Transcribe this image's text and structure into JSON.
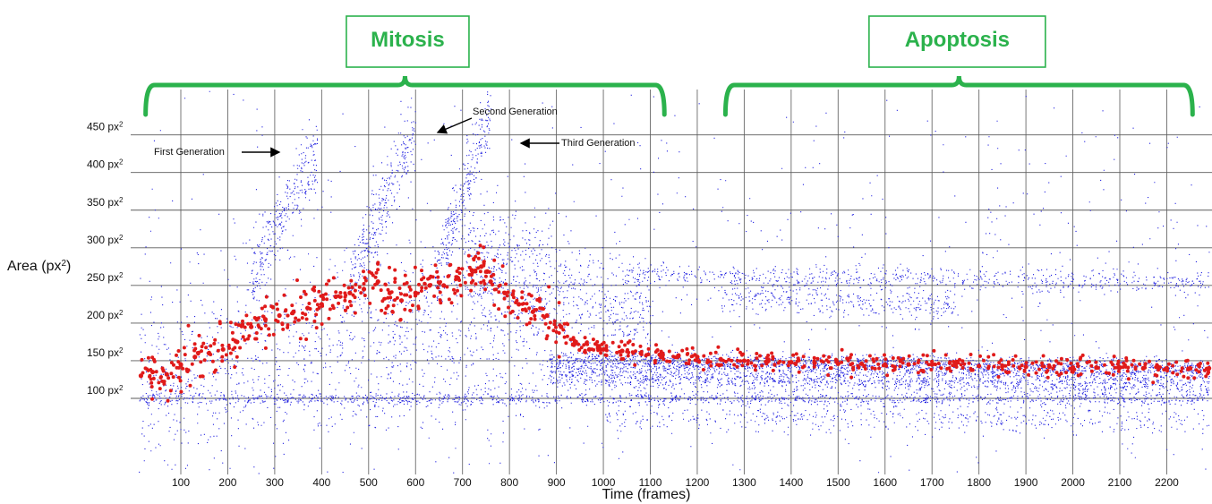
{
  "chart_data": {
    "type": "scatter",
    "xlabel": "Time (frames)",
    "ylabel_main": "Area (px",
    "ylabel_sup": "2",
    "ylabel_close": ")",
    "x_ticks": [
      100,
      200,
      300,
      400,
      500,
      600,
      700,
      800,
      900,
      1000,
      1100,
      1200,
      1300,
      1400,
      1500,
      1600,
      1700,
      1800,
      1900,
      2000,
      2100,
      2200
    ],
    "y_ticks": [
      {
        "value": 100,
        "label": "100 px"
      },
      {
        "value": 150,
        "label": "150 px"
      },
      {
        "value": 200,
        "label": "200 px"
      },
      {
        "value": 250,
        "label": "250 px"
      },
      {
        "value": 300,
        "label": "300 px"
      },
      {
        "value": 350,
        "label": "350 px"
      },
      {
        "value": 400,
        "label": "400 px"
      },
      {
        "value": 450,
        "label": "450 px"
      }
    ],
    "y_tick_sup": "2",
    "xlim": [
      10,
      2290
    ],
    "ylim": [
      0,
      510
    ],
    "grid": true,
    "phases": [
      {
        "label": "Mitosis",
        "x_range": [
          25,
          1130
        ]
      },
      {
        "label": "Apoptosis",
        "x_range": [
          1260,
          2255
        ]
      }
    ],
    "annotations": [
      {
        "text": "First Generation",
        "arrow": "right",
        "x": 180,
        "y": 403
      },
      {
        "text": "Second Generation",
        "arrow": "down-left",
        "x": 600,
        "y": 450
      },
      {
        "text": "Third Generation",
        "arrow": "left",
        "x": 775,
        "y": 416
      }
    ],
    "series": [
      {
        "name": "",
        "color": "#1e1ee0",
        "marker": "small-dot",
        "bands": [
          {
            "x": [
              10,
              2290
            ],
            "y_start": 100,
            "y_end": 100,
            "spread": 4,
            "count": 1300
          },
          {
            "x": [
              880,
              2290
            ],
            "y_start": 150,
            "y_end": 140,
            "spread": 6,
            "count": 1900
          },
          {
            "x": [
              880,
              2290
            ],
            "y_start": 130,
            "y_end": 120,
            "spread": 8,
            "count": 1600
          },
          {
            "x": [
              1040,
              2290
            ],
            "y_start": 265,
            "y_end": 255,
            "spread": 8,
            "count": 700
          },
          {
            "x": [
              1250,
              1750
            ],
            "y_start": 235,
            "y_end": 225,
            "spread": 10,
            "count": 350
          },
          {
            "x": [
              1000,
              2290
            ],
            "y_start": 75,
            "y_end": 70,
            "spread": 10,
            "count": 500
          },
          {
            "x": [
              250,
              390
            ],
            "y_start": 260,
            "y_end": 430,
            "spread": 25,
            "count": 300
          },
          {
            "x": [
              460,
              600
            ],
            "y_start": 250,
            "y_end": 470,
            "spread": 25,
            "count": 300
          },
          {
            "x": [
              640,
              760
            ],
            "y_start": 260,
            "y_end": 480,
            "spread": 25,
            "count": 300
          },
          {
            "x": [
              700,
              1100
            ],
            "y_start": 300,
            "y_end": 200,
            "spread": 35,
            "count": 700
          },
          {
            "x": [
              10,
              880
            ],
            "y_start": 120,
            "y_end": 190,
            "spread": 60,
            "count": 1200
          },
          {
            "x": [
              10,
              2290
            ],
            "y_start": 250,
            "y_end": 250,
            "spread": 160,
            "count": 900
          }
        ]
      },
      {
        "name": "",
        "color": "#e01a1a",
        "marker": "large-dot",
        "points": [
          [
            15,
            130
          ],
          [
            40,
            135
          ],
          [
            70,
            132
          ],
          [
            100,
            145
          ],
          [
            130,
            155
          ],
          [
            160,
            160
          ],
          [
            190,
            165
          ],
          [
            220,
            175
          ],
          [
            250,
            195
          ],
          [
            280,
            205
          ],
          [
            310,
            210
          ],
          [
            340,
            215
          ],
          [
            370,
            220
          ],
          [
            400,
            225
          ],
          [
            430,
            235
          ],
          [
            460,
            240
          ],
          [
            490,
            245
          ],
          [
            520,
            255
          ],
          [
            545,
            240
          ],
          [
            570,
            230
          ],
          [
            600,
            240
          ],
          [
            630,
            250
          ],
          [
            660,
            250
          ],
          [
            690,
            260
          ],
          [
            720,
            270
          ],
          [
            740,
            275
          ],
          [
            760,
            255
          ],
          [
            790,
            240
          ],
          [
            820,
            225
          ],
          [
            850,
            215
          ],
          [
            880,
            210
          ],
          [
            910,
            195
          ],
          [
            940,
            175
          ],
          [
            970,
            165
          ],
          [
            1000,
            165
          ],
          [
            1040,
            163
          ],
          [
            1080,
            160
          ],
          [
            1120,
            158
          ],
          [
            1160,
            157
          ],
          [
            1200,
            155
          ],
          [
            1250,
            152
          ],
          [
            1300,
            150
          ],
          [
            1350,
            150
          ],
          [
            1400,
            148
          ],
          [
            1450,
            147
          ],
          [
            1500,
            146
          ],
          [
            1550,
            146
          ],
          [
            1600,
            145
          ],
          [
            1650,
            145
          ],
          [
            1700,
            145
          ],
          [
            1750,
            144
          ],
          [
            1800,
            143
          ],
          [
            1850,
            143
          ],
          [
            1900,
            142
          ],
          [
            1950,
            142
          ],
          [
            2000,
            141
          ],
          [
            2050,
            141
          ],
          [
            2100,
            141
          ],
          [
            2150,
            140
          ],
          [
            2200,
            140
          ],
          [
            2250,
            140
          ],
          [
            2290,
            140
          ]
        ]
      }
    ]
  }
}
